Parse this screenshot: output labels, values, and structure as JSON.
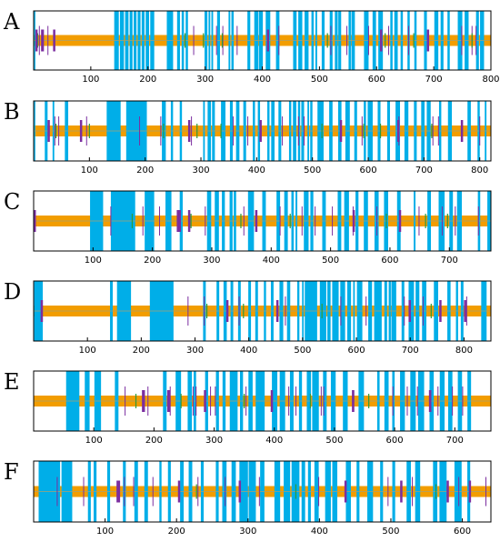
{
  "colors": {
    "background": "#ffffff",
    "frame": "#000000",
    "backbone": "#f29d00",
    "backbone_line": "#a8a070",
    "block": "#00aee8",
    "purple": "#7b2ea0",
    "green": "#2e9a3a"
  },
  "chart_data": [
    {
      "label": "A",
      "type": "segment_map",
      "xlim": [
        0,
        800
      ],
      "xticks": [
        100,
        200,
        300,
        400,
        500,
        600,
        700,
        800
      ],
      "blocks": [
        [
          1,
          3
        ],
        [
          141,
          149
        ],
        [
          151,
          158
        ],
        [
          160,
          166
        ],
        [
          168,
          173
        ],
        [
          175,
          180
        ],
        [
          182,
          187
        ],
        [
          189,
          194
        ],
        [
          196,
          202
        ],
        [
          204,
          211
        ],
        [
          233,
          244
        ],
        [
          251,
          256
        ],
        [
          259,
          263
        ],
        [
          266,
          270
        ],
        [
          299,
          304
        ],
        [
          306,
          309
        ],
        [
          311,
          314
        ],
        [
          321,
          326
        ],
        [
          341,
          344
        ],
        [
          346,
          350
        ],
        [
          374,
          379
        ],
        [
          386,
          393
        ],
        [
          394,
          401
        ],
        [
          406,
          414
        ],
        [
          424,
          430
        ],
        [
          454,
          460
        ],
        [
          463,
          470
        ],
        [
          474,
          481
        ],
        [
          486,
          490
        ],
        [
          493,
          496
        ],
        [
          504,
          509
        ],
        [
          518,
          523
        ],
        [
          527,
          532
        ],
        [
          533,
          538
        ],
        [
          551,
          555
        ],
        [
          556,
          562
        ],
        [
          578,
          586
        ],
        [
          593,
          599
        ],
        [
          603,
          611
        ],
        [
          624,
          628
        ],
        [
          631,
          637
        ],
        [
          642,
          646
        ],
        [
          654,
          658
        ],
        [
          666,
          670
        ],
        [
          683,
          688
        ],
        [
          701,
          708
        ],
        [
          712,
          717
        ],
        [
          724,
          728
        ],
        [
          742,
          750
        ],
        [
          754,
          761
        ],
        [
          774,
          779
        ],
        [
          781,
          788
        ]
      ],
      "purple_thick": [
        [
          3,
          6
        ],
        [
          13,
          18
        ],
        [
          34,
          37
        ],
        [
          408,
          411
        ],
        [
          606,
          609
        ],
        [
          688,
          691
        ]
      ],
      "purple_thin": [
        10,
        25,
        280,
        320,
        331,
        356,
        429,
        520,
        548,
        586,
        621,
        656,
        749,
        767,
        774
      ],
      "green_ticks": [
        7,
        265,
        297,
        330,
        514,
        615,
        665,
        767
      ]
    },
    {
      "label": "B",
      "type": "segment_map",
      "xlim": [
        0,
        820
      ],
      "xticks": [
        100,
        200,
        300,
        400,
        500,
        600,
        700,
        800
      ],
      "blocks": [
        [
          1,
          3
        ],
        [
          20,
          25
        ],
        [
          34,
          37
        ],
        [
          56,
          62
        ],
        [
          131,
          156
        ],
        [
          166,
          203
        ],
        [
          230,
          237
        ],
        [
          246,
          250
        ],
        [
          262,
          266
        ],
        [
          304,
          307
        ],
        [
          312,
          318
        ],
        [
          320,
          325
        ],
        [
          336,
          344
        ],
        [
          352,
          357
        ],
        [
          363,
          369
        ],
        [
          376,
          381
        ],
        [
          393,
          397
        ],
        [
          402,
          406
        ],
        [
          419,
          423
        ],
        [
          426,
          432
        ],
        [
          439,
          444
        ],
        [
          458,
          462
        ],
        [
          465,
          471
        ],
        [
          474,
          478
        ],
        [
          480,
          485
        ],
        [
          491,
          494
        ],
        [
          496,
          500
        ],
        [
          509,
          520
        ],
        [
          530,
          536
        ],
        [
          546,
          552
        ],
        [
          559,
          567
        ],
        [
          575,
          580
        ],
        [
          592,
          596
        ],
        [
          599,
          608
        ],
        [
          617,
          622
        ],
        [
          634,
          639
        ],
        [
          649,
          657
        ],
        [
          665,
          672
        ],
        [
          682,
          687
        ],
        [
          695,
          701
        ],
        [
          705,
          712
        ],
        [
          727,
          731
        ],
        [
          743,
          750
        ],
        [
          778,
          784
        ],
        [
          796,
          800
        ],
        [
          809,
          812
        ]
      ],
      "purple_thick": [
        [
          25,
          28
        ],
        [
          83,
          86
        ],
        [
          277,
          280
        ],
        [
          405,
          408
        ],
        [
          549,
          551
        ],
        [
          652,
          654
        ],
        [
          766,
          769
        ]
      ],
      "purple_thin": [
        38,
        45,
        95,
        190,
        228,
        283,
        358,
        384,
        446,
        475,
        485,
        589,
        655,
        716,
        726,
        800
      ],
      "green_ticks": [
        40,
        100,
        233,
        293,
        336,
        517,
        592,
        622,
        714
      ]
    },
    {
      "label": "C",
      "type": "segment_map",
      "xlim": [
        0,
        770
      ],
      "xticks": [
        100,
        200,
        300,
        400,
        500,
        600,
        700
      ],
      "blocks": [
        [
          95,
          117
        ],
        [
          130,
          171
        ],
        [
          187,
          203
        ],
        [
          222,
          232
        ],
        [
          246,
          251
        ],
        [
          292,
          299
        ],
        [
          305,
          312
        ],
        [
          317,
          322
        ],
        [
          330,
          335
        ],
        [
          337,
          341
        ],
        [
          361,
          371
        ],
        [
          385,
          391
        ],
        [
          409,
          415
        ],
        [
          422,
          428
        ],
        [
          434,
          438
        ],
        [
          441,
          444
        ],
        [
          455,
          463
        ],
        [
          466,
          471
        ],
        [
          486,
          492
        ],
        [
          512,
          518
        ],
        [
          523,
          531
        ],
        [
          542,
          547
        ],
        [
          556,
          563
        ],
        [
          574,
          581
        ],
        [
          590,
          597
        ],
        [
          612,
          618
        ],
        [
          640,
          643
        ],
        [
          663,
          669
        ],
        [
          682,
          692
        ],
        [
          700,
          706
        ],
        [
          713,
          721
        ],
        [
          748,
          752
        ],
        [
          764,
          770
        ]
      ],
      "purple_thick": [
        [
          0,
          3
        ],
        [
          241,
          248
        ],
        [
          260,
          263
        ],
        [
          373,
          375
        ],
        [
          537,
          540
        ],
        [
          615,
          618
        ]
      ],
      "purple_thin": [
        130,
        184,
        212,
        289,
        354,
        415,
        452,
        474,
        503,
        538,
        578,
        649,
        688,
        710,
        749
      ],
      "green_ticks": [
        166,
        265,
        349,
        432,
        594,
        660,
        697
      ]
    },
    {
      "label": "D",
      "type": "segment_map",
      "xlim": [
        0,
        850
      ],
      "xticks": [
        100,
        200,
        300,
        400,
        500,
        600,
        700,
        800
      ],
      "blocks": [
        [
          1,
          17
        ],
        [
          142,
          147
        ],
        [
          155,
          181
        ],
        [
          216,
          260
        ],
        [
          315,
          320
        ],
        [
          340,
          345
        ],
        [
          353,
          359
        ],
        [
          366,
          371
        ],
        [
          380,
          385
        ],
        [
          399,
          404
        ],
        [
          412,
          417
        ],
        [
          428,
          432
        ],
        [
          441,
          446
        ],
        [
          457,
          464
        ],
        [
          471,
          477
        ],
        [
          490,
          494
        ],
        [
          499,
          502
        ],
        [
          504,
          527
        ],
        [
          532,
          544
        ],
        [
          546,
          552
        ],
        [
          555,
          567
        ],
        [
          570,
          579
        ],
        [
          583,
          590
        ],
        [
          594,
          597
        ],
        [
          601,
          611
        ],
        [
          622,
          629
        ],
        [
          633,
          647
        ],
        [
          652,
          657
        ],
        [
          660,
          664
        ],
        [
          665,
          674
        ],
        [
          684,
          689
        ],
        [
          697,
          707
        ],
        [
          710,
          717
        ],
        [
          722,
          730
        ],
        [
          744,
          752
        ],
        [
          769,
          775
        ],
        [
          785,
          789
        ],
        [
          794,
          799
        ],
        [
          832,
          842
        ]
      ],
      "purple_thick": [
        [
          13,
          16
        ],
        [
          358,
          361
        ],
        [
          451,
          454
        ],
        [
          697,
          700
        ],
        [
          754,
          758
        ],
        [
          800,
          803
        ]
      ],
      "purple_thin": [
        287,
        317,
        382,
        468,
        571,
        618,
        689,
        724,
        805
      ],
      "green_ticks": [
        322,
        390,
        536,
        739
      ]
    },
    {
      "label": "E",
      "type": "segment_map",
      "xlim": [
        0,
        760
      ],
      "xticks": [
        100,
        200,
        300,
        400,
        500,
        600,
        700
      ],
      "blocks": [
        [
          54,
          76
        ],
        [
          85,
          93
        ],
        [
          101,
          112
        ],
        [
          135,
          141
        ],
        [
          215,
          221
        ],
        [
          236,
          245
        ],
        [
          256,
          263
        ],
        [
          266,
          270
        ],
        [
          285,
          290
        ],
        [
          303,
          308
        ],
        [
          314,
          319
        ],
        [
          326,
          339
        ],
        [
          343,
          348
        ],
        [
          357,
          364
        ],
        [
          369,
          384
        ],
        [
          396,
          405
        ],
        [
          409,
          418
        ],
        [
          426,
          432
        ],
        [
          441,
          446
        ],
        [
          454,
          461
        ],
        [
          463,
          474
        ],
        [
          481,
          487
        ],
        [
          494,
          502
        ],
        [
          514,
          522
        ],
        [
          540,
          549
        ],
        [
          571,
          575
        ],
        [
          583,
          590
        ],
        [
          596,
          600
        ],
        [
          609,
          617
        ],
        [
          626,
          635
        ],
        [
          639,
          649
        ],
        [
          658,
          665
        ],
        [
          675,
          683
        ],
        [
          689,
          696
        ],
        [
          705,
          712
        ],
        [
          721,
          727
        ]
      ],
      "purple_thick": [
        [
          180,
          185
        ],
        [
          222,
          227
        ],
        [
          283,
          286
        ],
        [
          394,
          397
        ],
        [
          529,
          533
        ],
        [
          657,
          661
        ]
      ],
      "purple_thin": [
        152,
        190,
        227,
        265,
        270,
        294,
        302,
        353,
        424,
        436,
        478,
        482,
        597,
        621,
        638,
        672,
        696,
        713
      ],
      "green_ticks": [
        170,
        245,
        350,
        460,
        557
      ]
    },
    {
      "label": "F",
      "type": "segment_map",
      "xlim": [
        0,
        640
      ],
      "xticks": [
        100,
        200,
        300,
        400,
        500,
        600
      ],
      "blocks": [
        [
          7,
          37
        ],
        [
          39,
          54
        ],
        [
          76,
          80
        ],
        [
          84,
          88
        ],
        [
          103,
          107
        ],
        [
          125,
          129
        ],
        [
          141,
          146
        ],
        [
          155,
          160
        ],
        [
          176,
          179
        ],
        [
          188,
          192
        ],
        [
          205,
          210
        ],
        [
          217,
          222
        ],
        [
          234,
          238
        ],
        [
          255,
          259
        ],
        [
          264,
          270
        ],
        [
          277,
          283
        ],
        [
          288,
          300
        ],
        [
          301,
          311
        ],
        [
          317,
          323
        ],
        [
          337,
          345
        ],
        [
          350,
          359
        ],
        [
          361,
          372
        ],
        [
          375,
          380
        ],
        [
          384,
          388
        ],
        [
          393,
          399
        ],
        [
          408,
          416
        ],
        [
          418,
          425
        ],
        [
          437,
          444
        ],
        [
          452,
          456
        ],
        [
          467,
          475
        ],
        [
          485,
          489
        ],
        [
          502,
          506
        ],
        [
          522,
          528
        ],
        [
          534,
          541
        ],
        [
          559,
          565
        ],
        [
          568,
          578
        ],
        [
          589,
          599
        ],
        [
          607,
          611
        ]
      ],
      "purple_thick": [
        [
          116,
          121
        ],
        [
          202,
          204
        ],
        [
          287,
          289
        ],
        [
          435,
          438
        ],
        [
          513,
          515
        ],
        [
          578,
          581
        ],
        [
          609,
          612
        ]
      ],
      "purple_thin": [
        33,
        70,
        127,
        140,
        167,
        230,
        268,
        316,
        399,
        496,
        530,
        595,
        633
      ],
      "green_ticks": [
        228,
        367,
        563
      ]
    }
  ]
}
